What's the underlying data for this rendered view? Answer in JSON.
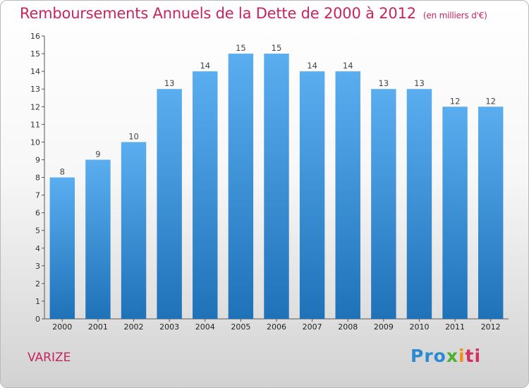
{
  "title": "Remboursements Annuels de la Dette de 2000 à 2012",
  "subtitle": "(en milliers d'€)",
  "commune": "VARIZE",
  "logo": {
    "part1": "Pro",
    "part2": "x",
    "part3": "i",
    "part4": "ti"
  },
  "colors": {
    "bar_top": "#5aaef0",
    "bar_bottom": "#1f72b8",
    "title": "#c5245f"
  },
  "chart_data": {
    "type": "bar",
    "title": "Remboursements Annuels de la Dette de 2000 à 2012",
    "subtitle": "(en milliers d'€)",
    "xlabel": "",
    "ylabel": "",
    "categories": [
      "2000",
      "2001",
      "2002",
      "2003",
      "2004",
      "2005",
      "2006",
      "2007",
      "2008",
      "2009",
      "2010",
      "2011",
      "2012"
    ],
    "values": [
      8,
      9,
      10,
      13,
      14,
      15,
      15,
      14,
      14,
      13,
      13,
      12,
      12
    ],
    "ylim": [
      0,
      16
    ],
    "yticks": [
      0,
      1,
      2,
      3,
      4,
      5,
      6,
      7,
      8,
      9,
      10,
      11,
      12,
      13,
      14,
      15,
      16
    ],
    "grid": false,
    "data_labels": true
  }
}
